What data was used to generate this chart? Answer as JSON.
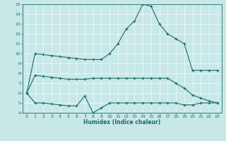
{
  "xlabel": "Humidex (Indice chaleur)",
  "xlim": [
    -0.5,
    23.5
  ],
  "ylim": [
    4,
    15
  ],
  "yticks": [
    4,
    5,
    6,
    7,
    8,
    9,
    10,
    11,
    12,
    13,
    14,
    15
  ],
  "xticks": [
    0,
    1,
    2,
    3,
    4,
    5,
    6,
    7,
    8,
    9,
    10,
    11,
    12,
    13,
    14,
    15,
    16,
    17,
    18,
    19,
    20,
    21,
    22,
    23
  ],
  "bg_color": "#c8e8e8",
  "line_color": "#1a6b6b",
  "line1_x": [
    0,
    1,
    2,
    3,
    4,
    5,
    6,
    7,
    8,
    9,
    10,
    11,
    12,
    13,
    14,
    15,
    16,
    17,
    18,
    19,
    20,
    21,
    22,
    23
  ],
  "line1_y": [
    6.0,
    10.0,
    9.9,
    9.8,
    9.7,
    9.6,
    9.5,
    9.4,
    9.4,
    9.4,
    10.0,
    11.0,
    12.5,
    13.3,
    15.0,
    14.8,
    13.0,
    12.0,
    11.5,
    11.0,
    8.3,
    8.3,
    8.3,
    8.3
  ],
  "line2_x": [
    0,
    1,
    2,
    3,
    4,
    5,
    6,
    7,
    8,
    9,
    10,
    11,
    12,
    13,
    14,
    15,
    16,
    17,
    18,
    19,
    20,
    21,
    22,
    23
  ],
  "line2_y": [
    6.0,
    7.8,
    7.7,
    7.6,
    7.5,
    7.4,
    7.4,
    7.4,
    7.5,
    7.5,
    7.5,
    7.5,
    7.5,
    7.5,
    7.5,
    7.5,
    7.5,
    7.5,
    7.0,
    6.5,
    5.8,
    5.5,
    5.2,
    5.0
  ],
  "line3_x": [
    0,
    1,
    2,
    3,
    4,
    5,
    6,
    7,
    8,
    9,
    10,
    11,
    12,
    13,
    14,
    15,
    16,
    17,
    18,
    19,
    20,
    21,
    22,
    23
  ],
  "line3_y": [
    6.0,
    5.0,
    5.0,
    4.9,
    4.8,
    4.7,
    4.7,
    5.7,
    4.0,
    4.5,
    5.0,
    5.0,
    5.0,
    5.0,
    5.0,
    5.0,
    5.0,
    5.0,
    5.0,
    4.8,
    4.8,
    5.0,
    5.0,
    5.0
  ]
}
